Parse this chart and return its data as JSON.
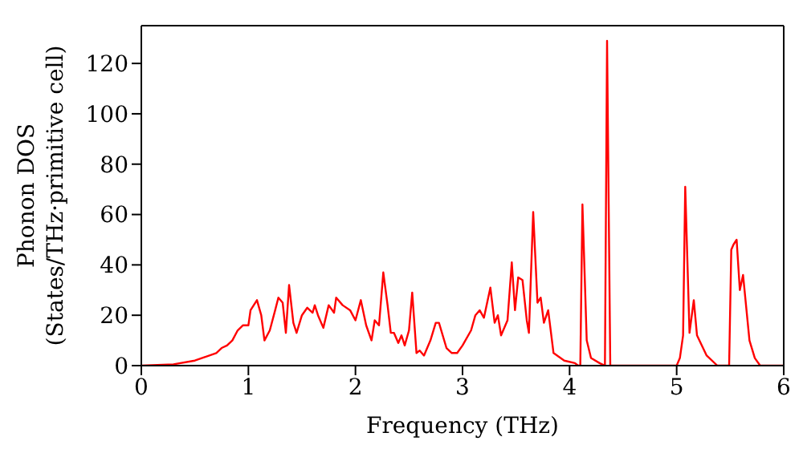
{
  "chart_data": {
    "type": "line",
    "xlabel": "Frequency (THz)",
    "ylabel": "Phonon DOS\n(States/THz·primitive cell)",
    "xlim": [
      0,
      6
    ],
    "xticks": [
      0,
      1,
      2,
      3,
      4,
      5,
      6
    ],
    "ylim": [
      0,
      135
    ],
    "yticks": [
      0,
      20,
      40,
      60,
      80,
      100,
      120
    ],
    "marker": "none",
    "line_style": "solid",
    "series": [
      {
        "color": "#ff0000",
        "x": [
          0,
          0.3,
          0.5,
          0.7,
          0.75,
          0.8,
          0.85,
          0.9,
          0.95,
          1.0,
          1.02,
          1.08,
          1.12,
          1.15,
          1.2,
          1.25,
          1.28,
          1.32,
          1.35,
          1.38,
          1.42,
          1.45,
          1.5,
          1.55,
          1.6,
          1.62,
          1.65,
          1.7,
          1.75,
          1.8,
          1.82,
          1.88,
          1.95,
          2.0,
          2.05,
          2.1,
          2.15,
          2.18,
          2.22,
          2.26,
          2.3,
          2.33,
          2.36,
          2.4,
          2.43,
          2.46,
          2.5,
          2.53,
          2.57,
          2.6,
          2.64,
          2.7,
          2.75,
          2.78,
          2.85,
          2.9,
          2.95,
          3.0,
          3.08,
          3.12,
          3.16,
          3.2,
          3.26,
          3.3,
          3.33,
          3.36,
          3.42,
          3.46,
          3.49,
          3.52,
          3.56,
          3.6,
          3.62,
          3.66,
          3.7,
          3.73,
          3.76,
          3.8,
          3.85,
          3.95,
          4.05,
          4.08,
          4.1,
          4.12,
          4.16,
          4.2,
          4.28,
          4.33,
          4.35,
          4.38,
          5.0,
          5.03,
          5.06,
          5.08,
          5.12,
          5.16,
          5.19,
          5.28,
          5.38,
          5.49,
          5.51,
          5.53,
          5.56,
          5.59,
          5.62,
          5.68,
          5.73,
          5.78,
          6.0
        ],
        "values": [
          0,
          0.5,
          2,
          5,
          7,
          8,
          10,
          14,
          16,
          16,
          22,
          26,
          20,
          10,
          14,
          22,
          27,
          25,
          13,
          32,
          17,
          13,
          20,
          23,
          21,
          24,
          20,
          15,
          24,
          21,
          27,
          24,
          22,
          18,
          26,
          16,
          10,
          18,
          16,
          37,
          24,
          13,
          13,
          9,
          12,
          8,
          14,
          29,
          5,
          6,
          4,
          10,
          17,
          17,
          7,
          5,
          5,
          8,
          14,
          20,
          22,
          19,
          31,
          17,
          20,
          12,
          18,
          41,
          22,
          35,
          34,
          18,
          13,
          61,
          25,
          27,
          17,
          22,
          5,
          2,
          1,
          0,
          0,
          64,
          10,
          3,
          1,
          0,
          129,
          0,
          0,
          3,
          12,
          71,
          13,
          26,
          12,
          4,
          0,
          0,
          46,
          48,
          50,
          30,
          36,
          10,
          3,
          0,
          0
        ]
      }
    ]
  }
}
